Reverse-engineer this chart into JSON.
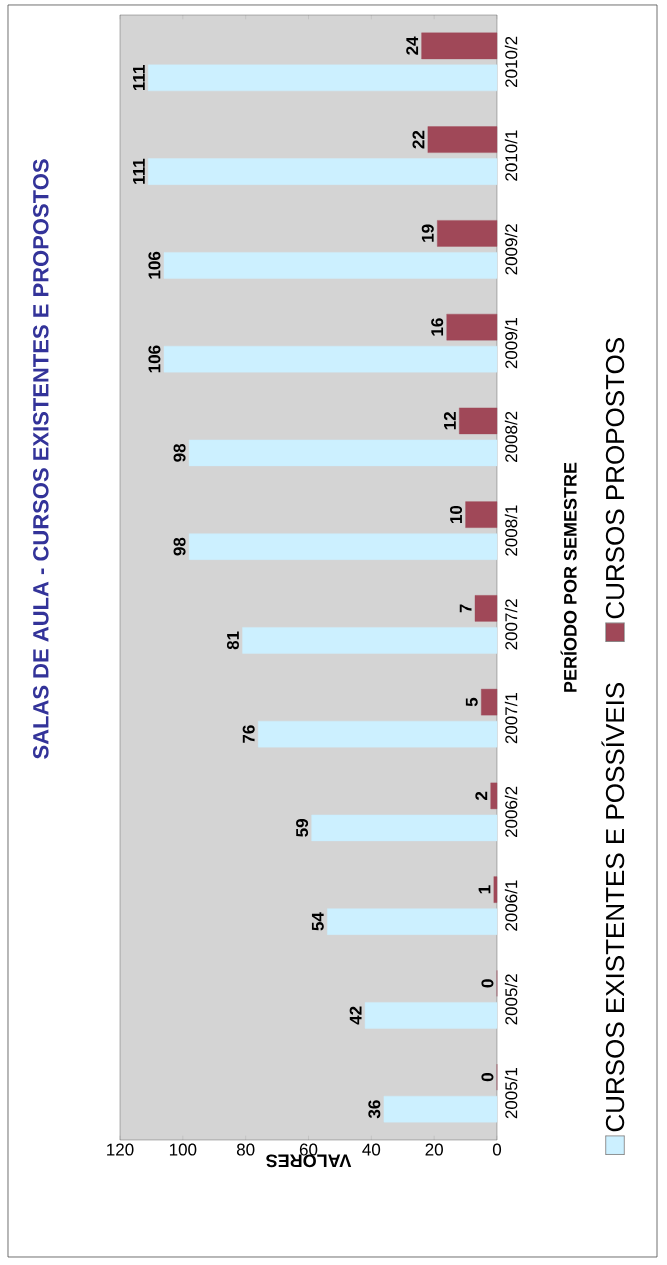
{
  "chart_data": {
    "type": "bar",
    "orientation": "horizontal",
    "title": "SALAS DE AULA - CURSOS EXISTENTES E PROPOSTOS",
    "xlabel": "VALORES",
    "ylabel": "PERÍODO POR SEMESTRE",
    "categories": [
      "2010/2",
      "2010/1",
      "2009/2",
      "2009/1",
      "2008/2",
      "2008/1",
      "2007/2",
      "2007/1",
      "2006/2",
      "2006/1",
      "2005/2",
      "2005/1"
    ],
    "series": [
      {
        "name": "CURSOS EXISTENTES E POSSÍVEIS",
        "color": "#ccf0ff",
        "values": [
          111,
          111,
          106,
          106,
          98,
          98,
          81,
          76,
          59,
          54,
          42,
          36
        ]
      },
      {
        "name": "CURSOS PROPOSTOS",
        "color": "#a04858",
        "values": [
          24,
          22,
          19,
          16,
          12,
          10,
          7,
          5,
          2,
          1,
          0,
          0
        ]
      }
    ],
    "xlim": [
      120,
      0
    ],
    "xticks": [
      0,
      20,
      40,
      60,
      80,
      100,
      120
    ],
    "data_labels": true,
    "legend": "right",
    "grid": false
  }
}
